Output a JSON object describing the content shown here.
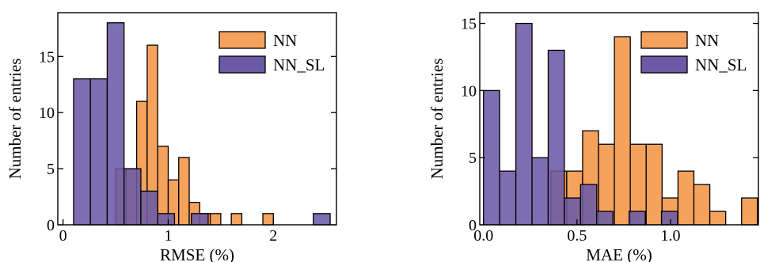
{
  "chart_data": [
    {
      "type": "histogram",
      "xlabel": "RMSE (%)",
      "ylabel": "Number of entries",
      "xlim": [
        -0.05,
        2.6
      ],
      "ylim": [
        0,
        18.9
      ],
      "xticks": [
        0,
        1,
        2
      ],
      "xtick_labels": [
        "0",
        "1",
        "2"
      ],
      "yticks": [
        0,
        5,
        10,
        15
      ],
      "ytick_labels": [
        "0",
        "5",
        "10",
        "15"
      ],
      "legend_position": "top-right",
      "series": [
        {
          "name": "NN",
          "color": "#f5a25d",
          "bins": [
            {
              "x0": 0.5,
              "x1": 0.6,
              "count": 5
            },
            {
              "x0": 0.6,
              "x1": 0.7,
              "count": 5
            },
            {
              "x0": 0.7,
              "x1": 0.8,
              "count": 11
            },
            {
              "x0": 0.8,
              "x1": 0.9,
              "count": 16
            },
            {
              "x0": 0.9,
              "x1": 1.0,
              "count": 7
            },
            {
              "x0": 1.0,
              "x1": 1.1,
              "count": 4
            },
            {
              "x0": 1.1,
              "x1": 1.2,
              "count": 6
            },
            {
              "x0": 1.2,
              "x1": 1.3,
              "count": 2
            },
            {
              "x0": 1.3,
              "x1": 1.4,
              "count": 1
            },
            {
              "x0": 1.4,
              "x1": 1.5,
              "count": 1
            },
            {
              "x0": 1.6,
              "x1": 1.7,
              "count": 1
            },
            {
              "x0": 1.9,
              "x1": 2.0,
              "count": 1
            }
          ]
        },
        {
          "name": "NN_SL",
          "color": "#6a5aa5",
          "bins": [
            {
              "x0": 0.1,
              "x1": 0.26,
              "count": 13
            },
            {
              "x0": 0.26,
              "x1": 0.42,
              "count": 13
            },
            {
              "x0": 0.42,
              "x1": 0.58,
              "count": 18
            },
            {
              "x0": 0.58,
              "x1": 0.74,
              "count": 5
            },
            {
              "x0": 0.74,
              "x1": 0.9,
              "count": 3
            },
            {
              "x0": 0.9,
              "x1": 1.06,
              "count": 1
            },
            {
              "x0": 1.22,
              "x1": 1.38,
              "count": 1
            },
            {
              "x0": 2.38,
              "x1": 2.54,
              "count": 1
            }
          ]
        }
      ]
    },
    {
      "type": "histogram",
      "xlabel": "MAE (%)",
      "ylabel": "Number of entries",
      "xlim": [
        -0.02,
        1.47
      ],
      "ylim": [
        0,
        15.8
      ],
      "xticks": [
        0,
        0.5,
        1.0
      ],
      "xtick_labels": [
        "0.0",
        "0.5",
        "1.0"
      ],
      "yticks": [
        0,
        5,
        10,
        15
      ],
      "ytick_labels": [
        "0",
        "5",
        "10",
        "15"
      ],
      "legend_position": "top-right",
      "series": [
        {
          "name": "NN",
          "color": "#f5a25d",
          "bins": [
            {
              "x0": 0.36,
              "x1": 0.445,
              "count": 4
            },
            {
              "x0": 0.445,
              "x1": 0.53,
              "count": 4
            },
            {
              "x0": 0.53,
              "x1": 0.615,
              "count": 7
            },
            {
              "x0": 0.615,
              "x1": 0.7,
              "count": 6
            },
            {
              "x0": 0.7,
              "x1": 0.785,
              "count": 14
            },
            {
              "x0": 0.785,
              "x1": 0.87,
              "count": 6
            },
            {
              "x0": 0.87,
              "x1": 0.955,
              "count": 6
            },
            {
              "x0": 0.955,
              "x1": 1.04,
              "count": 2
            },
            {
              "x0": 1.04,
              "x1": 1.125,
              "count": 4
            },
            {
              "x0": 1.125,
              "x1": 1.21,
              "count": 3
            },
            {
              "x0": 1.21,
              "x1": 1.295,
              "count": 1
            },
            {
              "x0": 1.38,
              "x1": 1.465,
              "count": 2
            }
          ]
        },
        {
          "name": "NN_SL",
          "color": "#6a5aa5",
          "bins": [
            {
              "x0": 0.0,
              "x1": 0.0865,
              "count": 10
            },
            {
              "x0": 0.0865,
              "x1": 0.173,
              "count": 4
            },
            {
              "x0": 0.173,
              "x1": 0.2595,
              "count": 15
            },
            {
              "x0": 0.2595,
              "x1": 0.346,
              "count": 5
            },
            {
              "x0": 0.346,
              "x1": 0.4325,
              "count": 13
            },
            {
              "x0": 0.4325,
              "x1": 0.519,
              "count": 2
            },
            {
              "x0": 0.519,
              "x1": 0.6055,
              "count": 3
            },
            {
              "x0": 0.6055,
              "x1": 0.692,
              "count": 1
            },
            {
              "x0": 0.7785,
              "x1": 0.865,
              "count": 1
            },
            {
              "x0": 0.9515,
              "x1": 1.038,
              "count": 1
            }
          ]
        }
      ]
    }
  ]
}
